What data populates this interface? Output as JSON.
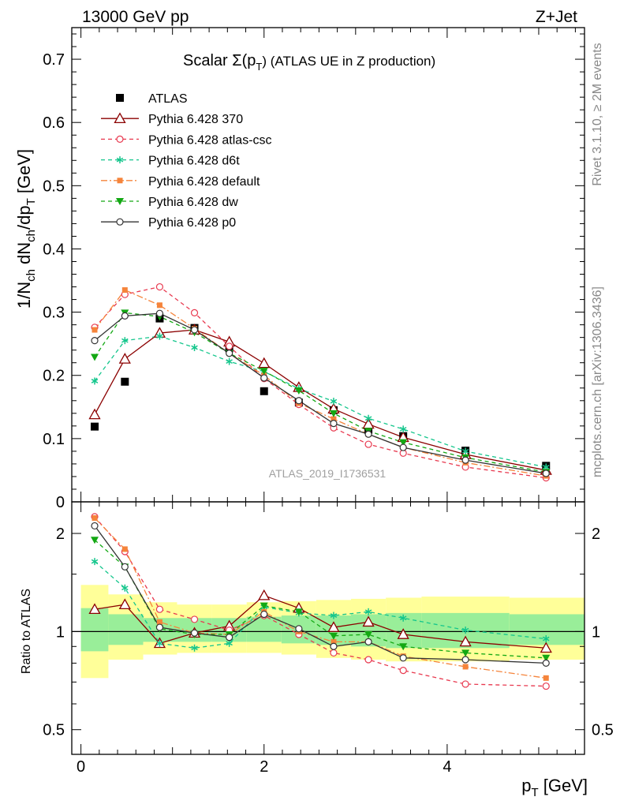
{
  "header": {
    "left": "13000 GeV pp",
    "right": "Z+Jet"
  },
  "side_labels": {
    "rivet": "Rivet 3.1.10, ≥ 2M events",
    "mcplots": "mcplots.cern.ch [arXiv:1306.3436]"
  },
  "chart_data": [
    {
      "type": "line",
      "title": "Scalar Σ(p_T) (ATLAS UE in Z production)",
      "title_main": "Scalar Σ(p",
      "title_sub": "T",
      "title_rest": ") (ATLAS UE in Z production)",
      "watermark": "ATLAS_2019_I1736531",
      "ylabel": "1/N_ch dN_ch/dp_T [GeV]",
      "xlabel": "p_T [GeV]",
      "xlim": [
        -0.1,
        5.5
      ],
      "ylim": [
        0,
        0.75
      ],
      "yticks": [
        "0",
        "0.1",
        "0.2",
        "0.3",
        "0.4",
        "0.5",
        "0.6",
        "0.7"
      ],
      "legend_position": "top-left",
      "x": [
        0.15,
        0.48,
        0.86,
        1.24,
        1.62,
        2.0,
        2.38,
        2.76,
        3.14,
        3.52,
        4.2,
        5.08
      ],
      "series": [
        {
          "name": "ATLAS",
          "color": "#000000",
          "marker": "square",
          "line": "none",
          "values": [
            0.119,
            0.19,
            0.29,
            0.275,
            0.243,
            0.175,
            0.157,
            0.145,
            0.114,
            0.104,
            0.081,
            0.057
          ]
        },
        {
          "name": "Pythia 6.428 370",
          "color": "#8b0000",
          "marker": "triangle-open",
          "line": "solid",
          "values": [
            0.138,
            0.226,
            0.267,
            0.272,
            0.253,
            0.219,
            0.181,
            0.147,
            0.123,
            0.102,
            0.075,
            0.05
          ]
        },
        {
          "name": "Pythia 6.428 atlas-csc",
          "color": "#e8394f",
          "marker": "circle-open",
          "line": "dashed",
          "values": [
            0.276,
            0.328,
            0.34,
            0.299,
            0.246,
            0.195,
            0.154,
            0.117,
            0.091,
            0.077,
            0.055,
            0.038
          ]
        },
        {
          "name": "Pythia 6.428 d6t",
          "color": "#14c68c",
          "marker": "star",
          "line": "dashed",
          "values": [
            0.191,
            0.255,
            0.262,
            0.244,
            0.222,
            0.206,
            0.179,
            0.159,
            0.132,
            0.115,
            0.08,
            0.055
          ]
        },
        {
          "name": "Pythia 6.428 default",
          "color": "#f5843b",
          "marker": "square-small",
          "line": "dashdot",
          "values": [
            0.272,
            0.335,
            0.311,
            0.274,
            0.235,
            0.2,
            0.156,
            0.131,
            0.107,
            0.086,
            0.062,
            0.041
          ]
        },
        {
          "name": "Pythia 6.428 dw",
          "color": "#13a813",
          "marker": "triangle-down",
          "line": "dashed",
          "values": [
            0.229,
            0.299,
            0.293,
            0.268,
            0.235,
            0.207,
            0.176,
            0.14,
            0.112,
            0.094,
            0.07,
            0.047
          ]
        },
        {
          "name": "Pythia 6.428 p0",
          "color": "#333333",
          "marker": "circle-open",
          "line": "solid",
          "values": [
            0.255,
            0.294,
            0.298,
            0.272,
            0.235,
            0.196,
            0.16,
            0.124,
            0.107,
            0.086,
            0.066,
            0.045
          ]
        }
      ]
    },
    {
      "type": "line",
      "ylabel": "Ratio to ATLAS",
      "ylog": true,
      "ylim": [
        0.42,
        2.5
      ],
      "yticks": [
        "0.5",
        "1",
        "2"
      ],
      "xticks": [
        "0",
        "2",
        "4"
      ],
      "bins": [
        [
          0,
          0.3
        ],
        [
          0.3,
          0.68
        ],
        [
          0.68,
          1.05
        ],
        [
          1.05,
          1.43
        ],
        [
          1.43,
          1.81
        ],
        [
          1.81,
          2.19
        ],
        [
          2.19,
          2.57
        ],
        [
          2.57,
          2.95
        ],
        [
          2.95,
          3.33
        ],
        [
          3.33,
          3.72
        ],
        [
          3.72,
          4.68
        ],
        [
          4.68,
          5.5
        ]
      ],
      "band_stat": [
        [
          0.87,
          1.18
        ],
        [
          0.91,
          1.13
        ],
        [
          0.93,
          1.1
        ],
        [
          0.93,
          1.1
        ],
        [
          0.93,
          1.1
        ],
        [
          0.93,
          1.11
        ],
        [
          0.92,
          1.12
        ],
        [
          0.91,
          1.12
        ],
        [
          0.9,
          1.13
        ],
        [
          0.89,
          1.14
        ],
        [
          0.89,
          1.14
        ],
        [
          0.91,
          1.13
        ]
      ],
      "band_syst": [
        [
          0.72,
          1.39
        ],
        [
          0.82,
          1.3
        ],
        [
          0.85,
          1.23
        ],
        [
          0.86,
          1.21
        ],
        [
          0.86,
          1.21
        ],
        [
          0.86,
          1.23
        ],
        [
          0.85,
          1.24
        ],
        [
          0.83,
          1.25
        ],
        [
          0.82,
          1.26
        ],
        [
          0.81,
          1.27
        ],
        [
          0.81,
          1.28
        ],
        [
          0.82,
          1.27
        ]
      ],
      "series": [
        {
          "name": "Pythia 6.428 370",
          "values": [
            1.17,
            1.21,
            0.92,
            0.99,
            1.04,
            1.29,
            1.18,
            1.03,
            1.07,
            0.98,
            0.93,
            0.89
          ]
        },
        {
          "name": "Pythia 6.428 atlas-csc",
          "values": [
            2.25,
            1.76,
            1.17,
            1.09,
            1.01,
            1.12,
            0.98,
            0.86,
            0.82,
            0.76,
            0.69,
            0.68
          ]
        },
        {
          "name": "Pythia 6.428 d6t",
          "values": [
            1.64,
            1.36,
            0.92,
            0.89,
            0.92,
            1.19,
            1.14,
            1.12,
            1.15,
            1.1,
            1.01,
            0.95
          ]
        },
        {
          "name": "Pythia 6.428 default",
          "values": [
            2.23,
            1.79,
            1.07,
            0.99,
            0.98,
            1.15,
            1.0,
            0.93,
            0.93,
            0.84,
            0.78,
            0.72
          ]
        },
        {
          "name": "Pythia 6.428 dw",
          "values": [
            1.91,
            1.58,
            1.02,
            0.98,
            0.98,
            1.2,
            1.15,
            0.97,
            0.98,
            0.9,
            0.86,
            0.83
          ]
        },
        {
          "name": "Pythia 6.428 p0",
          "values": [
            2.11,
            1.58,
            1.03,
            0.99,
            0.96,
            1.13,
            1.02,
            0.9,
            0.93,
            0.83,
            0.82,
            0.8
          ]
        }
      ]
    }
  ]
}
